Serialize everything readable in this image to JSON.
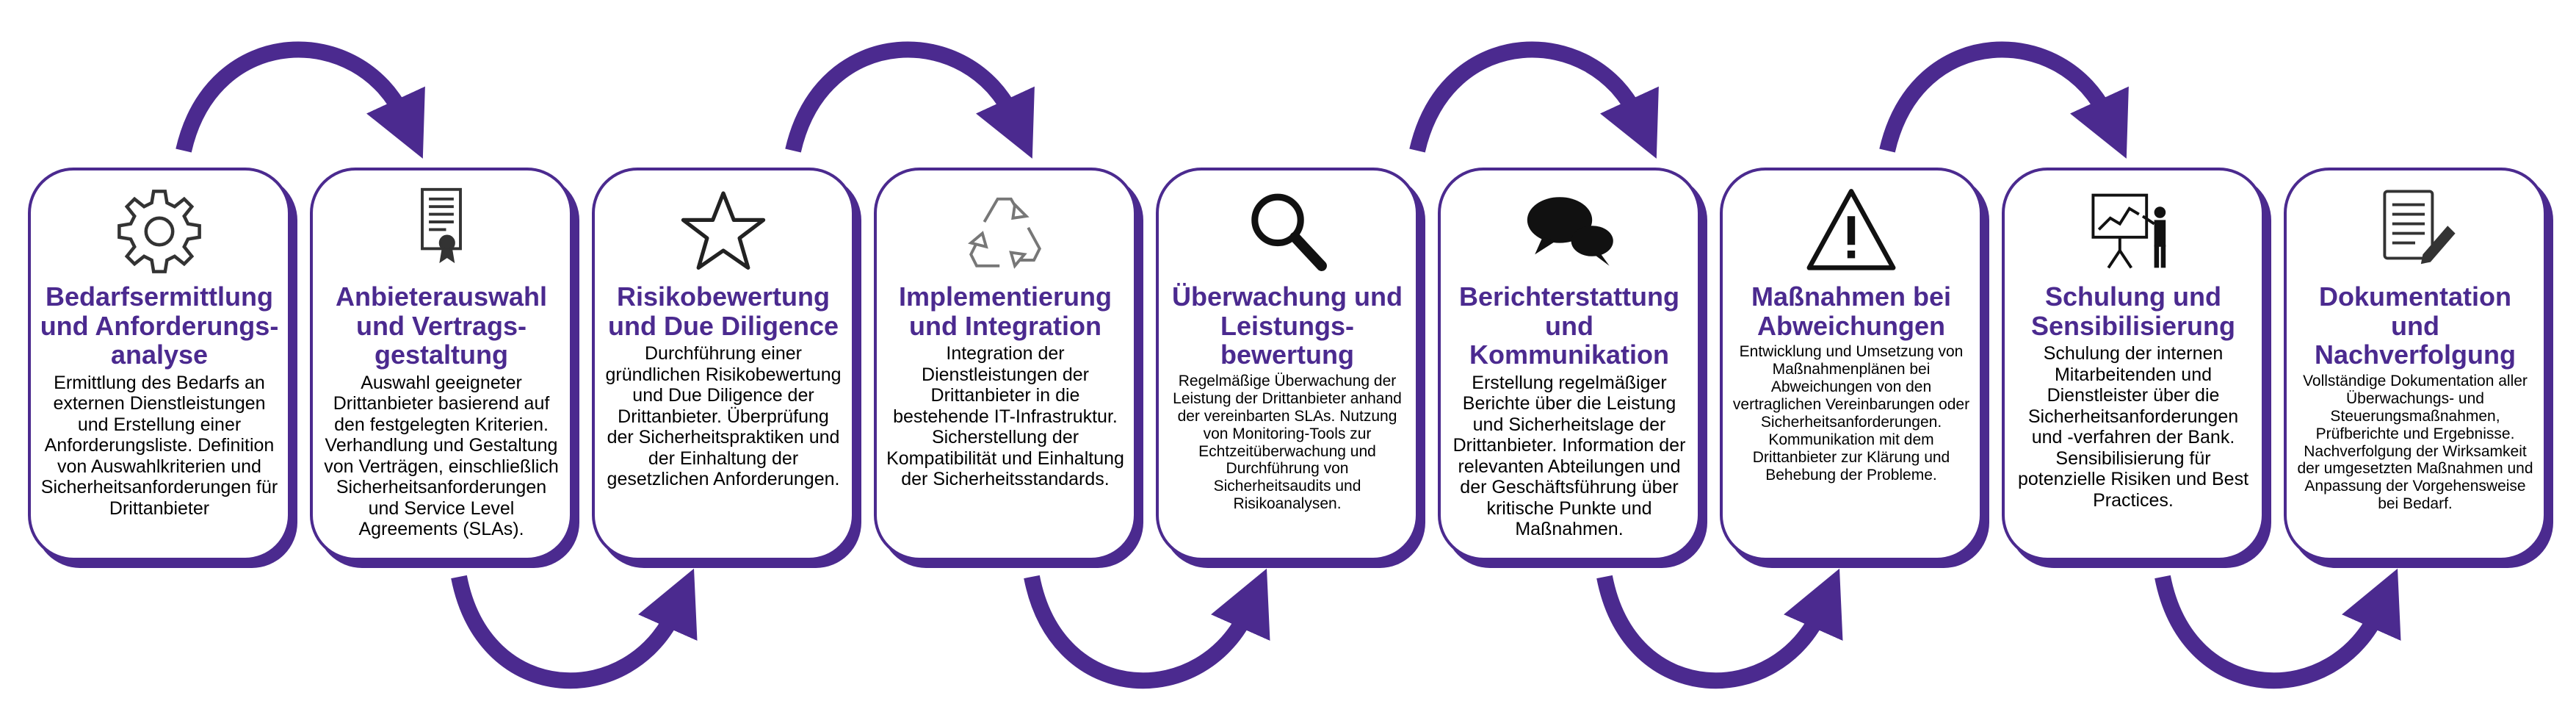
{
  "colors": {
    "accent": "#4b2a8f",
    "icon_gray": "#333333",
    "background": "#ffffff"
  },
  "steps": [
    {
      "icon": "gear-icon",
      "title": "Bedarfsermittlung und Anforderungs-analyse",
      "description": "Ermittlung des Bedarfs an externen Dienstleistungen und Erstellung einer Anforderungsliste. Definition von Auswahlkriterien und Sicherheitsanforderungen für Drittanbieter"
    },
    {
      "icon": "certificate-icon",
      "title": "Anbieterauswahl und Vertrags-gestaltung",
      "description": "Auswahl geeigneter Drittanbieter basierend auf den festgelegten Kriterien. Verhandlung und Gestaltung von Verträgen, einschließlich Sicherheitsanforderungen und Service Level Agreements (SLAs)."
    },
    {
      "icon": "star-icon",
      "title": "Risikobewertung und Due Diligence",
      "description": "Durchführung einer gründlichen Risikobewertung und Due Diligence der Drittanbieter. Überprüfung der Sicherheitspraktiken und der Einhaltung der gesetzlichen Anforderungen."
    },
    {
      "icon": "recycle-icon",
      "title": "Implementierung und Integration",
      "description": "Integration der Dienstleistungen der Drittanbieter in die bestehende IT-Infrastruktur. Sicherstellung der Kompatibilität und Einhaltung der Sicherheitsstandards."
    },
    {
      "icon": "magnifier-icon",
      "title": "Überwachung und Leistungs-bewertung",
      "description": "Regelmäßige Überwachung der Leistung der Drittanbieter anhand der vereinbarten SLAs. Nutzung von Monitoring-Tools zur Echtzeitüberwachung und Durchführung von Sicherheitsaudits und Risikoanalysen."
    },
    {
      "icon": "chat-bubbles-icon",
      "title": "Berichterstattung und Kommunikation",
      "description": "Erstellung regelmäßiger Berichte über die Leistung und Sicherheitslage der Drittanbieter. Information der relevanten Abteilungen und der Geschäftsführung über kritische Punkte und Maßnahmen."
    },
    {
      "icon": "warning-icon",
      "title": "Maßnahmen bei Abweichungen",
      "description": "Entwicklung und Umsetzung von Maßnahmenplänen bei Abweichungen von den vertraglichen Vereinbarungen oder Sicherheitsanforderungen. Kommunikation mit dem Drittanbieter zur Klärung und Behebung der Probleme."
    },
    {
      "icon": "presentation-icon",
      "title": "Schulung und Sensibilisierung",
      "description": "Schulung der internen Mitarbeitenden und Dienstleister über die Sicherheitsanforderungen und -verfahren der Bank. Sensibilisierung für potenzielle Risiken und Best Practices."
    },
    {
      "icon": "document-pen-icon",
      "title": "Dokumentation und Nachverfolgung",
      "description": "Vollständige Dokumentation aller Überwachungs- und Steuerungsmaßnahmen, Prüfberichte und Ergebnisse. Nachverfolgung der Wirksamkeit der umgesetzten Maßnahmen und Anpassung der Vorgehensweise bei Bedarf."
    }
  ]
}
